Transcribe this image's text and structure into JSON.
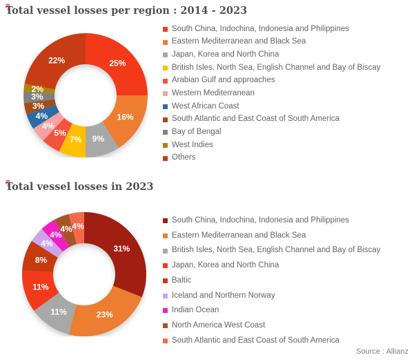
{
  "ui": {
    "quote_glyph": "❜",
    "accent_color": "#F4795B",
    "title_color": "#4E4E56",
    "legend_text_color": "#646464"
  },
  "source_note": "Source : Allianz",
  "chart_data": [
    {
      "type": "pie",
      "subtype": "donut",
      "title": "Total vessel losses per region : 2014 - 2023",
      "hole_ratio": 0.5,
      "start_angle_deg": 0,
      "direction": "clockwise",
      "labels_format": "percent",
      "legend_position": "right",
      "slices": [
        {
          "label": "South China, Indochina, Indonesia and Philippines",
          "value": 25,
          "color": "#F23A1B"
        },
        {
          "label": "Eastern Mediterranean and Black Sea",
          "value": 16,
          "color": "#ED7D31"
        },
        {
          "label": "Japan, Korea and North China",
          "value": 9,
          "color": "#A8A8A8"
        },
        {
          "label": "British Isles, North Sea, English Channel and Bay of Biscay",
          "value": 7,
          "color": "#FFC000"
        },
        {
          "label": "Arabian Gulf and approaches",
          "value": 5,
          "color": "#F5523E"
        },
        {
          "label": "Western Mediterranean",
          "value": 4,
          "color": "#F5A3A2"
        },
        {
          "label": "West African Coast",
          "value": 4,
          "color": "#2B6CA8"
        },
        {
          "label": "South Atlantic and East Coast of South America",
          "value": 3,
          "color": "#A44D1A"
        },
        {
          "label": "Bay of Bengal",
          "value": 3,
          "color": "#808080"
        },
        {
          "label": "West Indies",
          "value": 2,
          "color": "#AD8508"
        },
        {
          "label": "Others",
          "value": 22,
          "color": "#C83C15"
        }
      ]
    },
    {
      "type": "pie",
      "subtype": "donut",
      "title": "Total vessel losses in 2023",
      "hole_ratio": 0.5,
      "start_angle_deg": 0,
      "direction": "clockwise",
      "labels_format": "percent",
      "legend_position": "right",
      "slices": [
        {
          "label": "South China, Indochina, Indonesia and Philippines",
          "value": 31,
          "color": "#A01E12"
        },
        {
          "label": "Eastern Mediterranean and Black Sea",
          "value": 23,
          "color": "#ED7D31"
        },
        {
          "label": "British Isles, North Sea, English Channel and Bay of Biscay",
          "value": 11,
          "color": "#A8A8A8"
        },
        {
          "label": "Japan, Korea and North China",
          "value": 11,
          "color": "#F23A1B"
        },
        {
          "label": "Baltic",
          "value": 8,
          "color": "#C63A0F"
        },
        {
          "label": "Iceland and Northern Norway",
          "value": 4,
          "color": "#CDA3EC"
        },
        {
          "label": "Indian Ocean",
          "value": 4,
          "color": "#F21EC4"
        },
        {
          "label": "North America West Coast",
          "value": 4,
          "color": "#A8542A"
        },
        {
          "label": "South Atlantic and East Coast of South America",
          "value": 4,
          "color": "#F4694C"
        }
      ]
    }
  ]
}
